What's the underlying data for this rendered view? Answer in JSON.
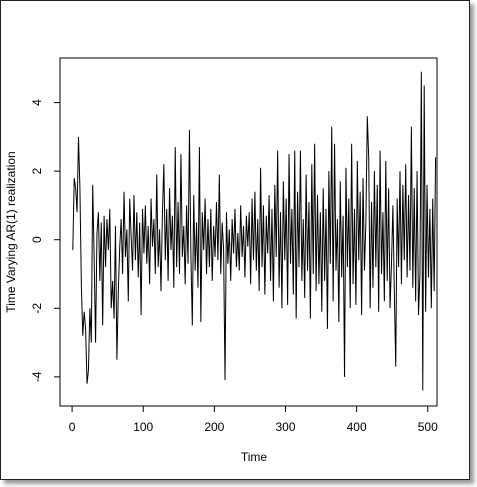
{
  "chart_data": {
    "type": "line",
    "xlabel": "Time",
    "ylabel": "Time Varying AR(1) realization",
    "x": [
      1,
      3,
      5,
      7,
      9,
      11,
      13,
      15,
      17,
      19,
      21,
      23,
      25,
      27,
      29,
      31,
      33,
      35,
      37,
      39,
      41,
      43,
      45,
      47,
      49,
      51,
      53,
      55,
      57,
      59,
      61,
      63,
      65,
      67,
      69,
      71,
      73,
      75,
      77,
      79,
      81,
      83,
      85,
      87,
      89,
      91,
      93,
      95,
      97,
      99,
      101,
      103,
      105,
      107,
      109,
      111,
      113,
      115,
      117,
      119,
      121,
      123,
      125,
      127,
      129,
      131,
      133,
      135,
      137,
      139,
      141,
      143,
      145,
      147,
      149,
      151,
      153,
      155,
      157,
      159,
      161,
      163,
      165,
      167,
      169,
      171,
      173,
      175,
      177,
      179,
      181,
      183,
      185,
      187,
      189,
      191,
      193,
      195,
      197,
      199,
      201,
      203,
      205,
      207,
      209,
      211,
      213,
      215,
      217,
      219,
      221,
      223,
      225,
      227,
      229,
      231,
      233,
      235,
      237,
      239,
      241,
      243,
      245,
      247,
      249,
      251,
      253,
      255,
      257,
      259,
      261,
      263,
      265,
      267,
      269,
      271,
      273,
      275,
      277,
      279,
      281,
      283,
      285,
      287,
      289,
      291,
      293,
      295,
      297,
      299,
      301,
      303,
      305,
      307,
      309,
      311,
      313,
      315,
      317,
      319,
      321,
      323,
      325,
      327,
      329,
      331,
      333,
      335,
      337,
      339,
      341,
      343,
      345,
      347,
      349,
      351,
      353,
      355,
      357,
      359,
      361,
      363,
      365,
      367,
      369,
      371,
      373,
      375,
      377,
      379,
      381,
      383,
      385,
      387,
      389,
      391,
      393,
      395,
      397,
      399,
      401,
      403,
      405,
      407,
      409,
      411,
      413,
      415,
      417,
      419,
      421,
      423,
      425,
      427,
      429,
      431,
      433,
      435,
      437,
      439,
      441,
      443,
      445,
      447,
      449,
      451,
      453,
      455,
      457,
      459,
      461,
      463,
      465,
      467,
      469,
      471,
      473,
      475,
      477,
      479,
      481,
      483,
      485,
      487,
      489,
      491,
      493,
      495,
      497,
      499,
      501,
      503,
      505,
      507,
      509,
      511
    ],
    "series": [
      {
        "color": "#000000",
        "values": [
          -0.3,
          1.8,
          1.5,
          0.8,
          3.0,
          1.5,
          -1.3,
          -2.8,
          -2.1,
          -2.6,
          -4.2,
          -3.8,
          -2.0,
          -3.0,
          1.6,
          -0.5,
          -3.0,
          0.2,
          0.8,
          -1.2,
          0.5,
          -2.5,
          0.7,
          -0.8,
          0.6,
          -0.3,
          0.9,
          -2.0,
          -1.2,
          -2.3,
          0.4,
          -3.5,
          -1.5,
          -0.2,
          0.6,
          -1.0,
          1.4,
          -0.5,
          0.3,
          -1.8,
          1.2,
          0.1,
          -0.9,
          1.3,
          -0.6,
          0.8,
          -1.1,
          0.5,
          -2.2,
          0.9,
          -0.4,
          1.0,
          -0.7,
          0.4,
          -1.3,
          1.2,
          -0.2,
          0.6,
          -1.0,
          1.9,
          -0.8,
          0.3,
          -1.5,
          0.8,
          2.2,
          -0.6,
          0.9,
          -1.2,
          1.5,
          -0.3,
          0.7,
          -1.4,
          2.7,
          -0.8,
          1.1,
          -1.0,
          2.5,
          -0.5,
          0.4,
          -1.3,
          1.0,
          -0.7,
          3.2,
          -0.4,
          -2.5,
          1.3,
          -0.9,
          0.5,
          -1.4,
          2.7,
          -2.4,
          0.8,
          -0.3,
          1.2,
          -1.0,
          0.6,
          -0.8,
          0.9,
          -1.2,
          0.4,
          -0.5,
          1.1,
          -0.6,
          1.9,
          -1.0,
          0.5,
          -0.3,
          -4.1,
          0.8,
          -0.7,
          0.3,
          -1.2,
          0.6,
          -0.4,
          0.9,
          -0.8,
          0.2,
          -0.9,
          1.0,
          -0.5,
          0.4,
          -1.1,
          0.7,
          -0.2,
          0.8,
          -1.3,
          1.2,
          -0.6,
          1.4,
          -0.9,
          0.6,
          -1.5,
          2.1,
          -0.8,
          1.0,
          -1.6,
          0.7,
          -0.4,
          1.3,
          -1.2,
          0.9,
          -1.8,
          1.6,
          -0.5,
          2.6,
          -1.4,
          0.8,
          -2.0,
          1.7,
          -0.6,
          1.2,
          -1.9,
          2.5,
          -0.7,
          0.9,
          -1.6,
          2.6,
          -2.3,
          1.4,
          -0.8,
          2.6,
          -1.2,
          0.6,
          -1.7,
          1.9,
          -0.9,
          1.1,
          -2.3,
          2.2,
          -1.0,
          2.8,
          -1.5,
          1.3,
          -1.3,
          0.8,
          -2.1,
          1.5,
          -1.2,
          0.9,
          -2.6,
          2.0,
          -0.7,
          3.3,
          -1.8,
          2.8,
          -0.9,
          0.6,
          -2.4,
          1.7,
          -1.1,
          0.7,
          -4.0,
          2.1,
          -0.8,
          1.2,
          -2.0,
          2.8,
          -1.3,
          0.9,
          -1.9,
          2.3,
          -0.6,
          1.4,
          -2.2,
          1.8,
          -0.9,
          0.5,
          3.6,
          2.4,
          -2.0,
          1.1,
          -1.4,
          2.0,
          -0.8,
          1.6,
          -2.1,
          2.6,
          -1.0,
          0.8,
          -1.8,
          2.3,
          -1.2,
          1.5,
          -2.0,
          -0.7,
          1.0,
          -1.5,
          -3.7,
          1.2,
          -0.8,
          2.0,
          -1.3,
          1.6,
          -0.6,
          2.2,
          -1.1,
          1.3,
          -0.9,
          3.3,
          -1.4,
          1.5,
          -1.8,
          2.0,
          -2.2,
          -1.0,
          4.9,
          -4.4,
          4.5,
          -2.1,
          1.6,
          -1.1,
          0.9,
          -2.0,
          1.2,
          -1.5,
          2.4
        ]
      }
    ],
    "xlim": [
      -17,
      513
    ],
    "ylim": [
      -4.85,
      5.3
    ],
    "xticks": [
      0,
      100,
      200,
      300,
      400,
      500
    ],
    "yticks": [
      -4,
      -2,
      0,
      2,
      4
    ],
    "grid": false
  }
}
